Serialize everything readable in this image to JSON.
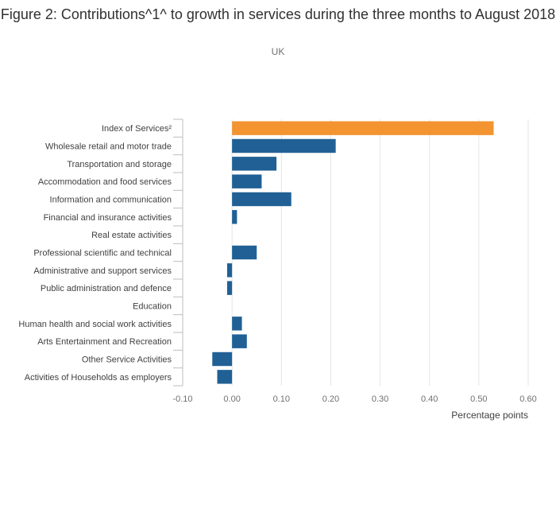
{
  "chart_data": {
    "type": "bar",
    "orientation": "horizontal",
    "title": "Figure 2: Contributions^1^ to growth in services during the three months to August 2018",
    "subtitle": "UK",
    "xlabel": "Percentage points",
    "ylabel": "",
    "xlim": [
      -0.1,
      0.6
    ],
    "xticks": [
      "-0.10",
      "0.00",
      "0.10",
      "0.20",
      "0.30",
      "0.40",
      "0.50",
      "0.60"
    ],
    "grid": true,
    "legend": "none",
    "categories": [
      "Index of Services²",
      "Wholesale retail and motor trade",
      "Transportation and storage",
      "Accommodation and food services",
      "Information and communication",
      "Financial and insurance activities",
      "Real estate activities",
      "Professional scientific and technical",
      "Administrative and support services",
      "Public administration and defence",
      "Education",
      "Human health and social work activities",
      "Arts Entertainment and Recreation",
      "Other Service Activities",
      "Activities of Households as employers"
    ],
    "values": [
      0.53,
      0.21,
      0.09,
      0.06,
      0.12,
      0.01,
      0.0,
      0.05,
      -0.01,
      -0.01,
      0.0,
      0.02,
      0.03,
      -0.04,
      -0.03
    ],
    "colors": {
      "highlight": "#f39431",
      "default": "#206095",
      "grid": "#e5e5e5",
      "axis": "#bebebe"
    },
    "highlight_index": 0
  }
}
